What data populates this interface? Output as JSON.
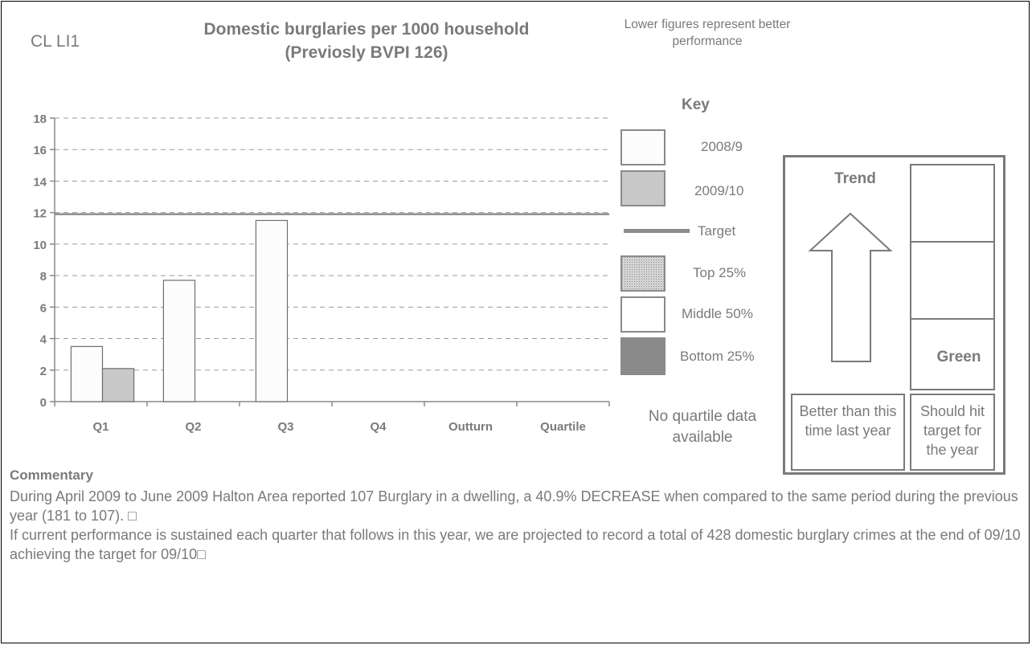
{
  "header": {
    "code": "CL LI1",
    "title_line1": "Domestic burglaries per 1000 household",
    "title_line2": "(Previosly BVPI 126)",
    "note": "Lower figures represent better performance"
  },
  "key": {
    "title": "Key",
    "items": [
      {
        "label": "2008/9",
        "swatch": "#fcfcfc"
      },
      {
        "label": "2009/10",
        "swatch": "#c8c8c8"
      },
      {
        "label": "Target",
        "swatch": "#8c8c8c"
      },
      {
        "label": "Top 25%",
        "swatch": "#b4b4b4"
      },
      {
        "label": "Middle 50%",
        "swatch": "#ffffff"
      },
      {
        "label": "Bottom 25%",
        "swatch": "#8a8a8a"
      }
    ],
    "no_quartile": "No quartile data available"
  },
  "trend": {
    "title": "Trend",
    "status": "Green",
    "better_label": "Better than this time last year",
    "target_label": "Should hit target for the year"
  },
  "commentary": {
    "heading": "Commentary",
    "paragraph1": "During April 2009 to June 2009 Halton Area reported 107 Burglary in a dwelling, a 40.9% DECREASE when compared to the same period during the previous year (181 to 107). □",
    "paragraph2": "If current performance is sustained each quarter that follows in this year, we are projected to record a total of 428 domestic burglary crimes at the end of 09/10 achieving the target for 09/10□"
  },
  "chart_data": {
    "type": "bar",
    "categories": [
      "Q1",
      "Q2",
      "Q3",
      "Q4",
      "Outturn",
      "Quartile"
    ],
    "series": [
      {
        "name": "2008/9",
        "values": [
          3.5,
          7.7,
          11.5,
          null,
          null,
          null
        ],
        "color": "#fcfcfc"
      },
      {
        "name": "2009/10",
        "values": [
          2.1,
          null,
          null,
          null,
          null,
          null
        ],
        "color": "#c8c8c8"
      }
    ],
    "target": 11.9,
    "target_name": "Target",
    "ylim": [
      0,
      18
    ],
    "yticks": [
      0,
      2,
      4,
      6,
      8,
      10,
      12,
      14,
      16,
      18
    ],
    "grid": true,
    "legend": "right",
    "title": "Domestic burglaries per 1000 household",
    "xlabel": "",
    "ylabel": ""
  }
}
